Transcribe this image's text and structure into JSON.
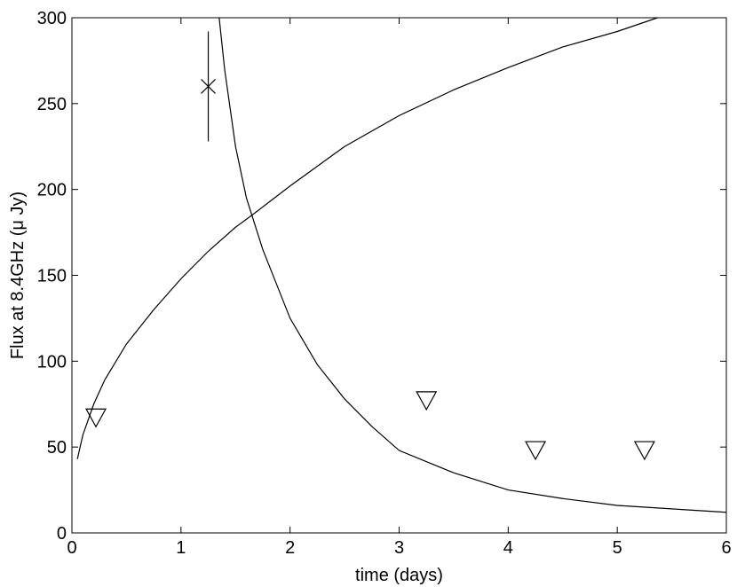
{
  "chart_data": {
    "type": "scatter",
    "title": "",
    "xlabel": "time (days)",
    "ylabel": "Flux at 8.4GHz (μ Jy)",
    "xlim": [
      0,
      6
    ],
    "ylim": [
      0,
      300
    ],
    "x_ticks": [
      0,
      1,
      2,
      3,
      4,
      5,
      6
    ],
    "y_ticks": [
      0,
      50,
      100,
      150,
      200,
      250,
      300
    ],
    "x_tick_labels": [
      "0",
      "1",
      "2",
      "3",
      "4",
      "5",
      "6"
    ],
    "y_tick_labels": [
      "0",
      "50",
      "100",
      "150",
      "200",
      "250",
      "300"
    ],
    "grid": false,
    "detections": [
      {
        "x": 1.25,
        "y": 260,
        "y_err_low": 228,
        "y_err_high": 292,
        "marker": "x"
      }
    ],
    "upper_limits": [
      {
        "x": 0.22,
        "y": 67,
        "marker": "triangle-down"
      },
      {
        "x": 3.25,
        "y": 77,
        "marker": "triangle-down"
      },
      {
        "x": 4.25,
        "y": 48,
        "marker": "triangle-down"
      },
      {
        "x": 5.25,
        "y": 48,
        "marker": "triangle-down"
      }
    ],
    "curves": [
      {
        "x": [
          0.05,
          0.1,
          0.2,
          0.3,
          0.5,
          0.75,
          1.0,
          1.25,
          1.5,
          1.65,
          2.0,
          2.5,
          3.0,
          3.5,
          4.0,
          4.5,
          5.0,
          5.37
        ],
        "y": [
          43,
          57,
          75,
          89,
          110,
          130,
          148,
          164,
          178,
          185,
          202,
          225,
          243,
          258,
          271,
          283,
          292,
          300
        ]
      },
      {
        "x": [
          1.35,
          1.4,
          1.5,
          1.6,
          1.65,
          1.75,
          2.0,
          2.25,
          2.5,
          2.75,
          3.0,
          3.5,
          4.0,
          4.5,
          5.0,
          5.5,
          6.0
        ],
        "y": [
          300,
          270,
          225,
          195,
          185,
          165,
          125,
          98,
          78,
          62,
          48,
          35,
          25,
          20,
          16,
          14,
          12
        ]
      }
    ]
  }
}
